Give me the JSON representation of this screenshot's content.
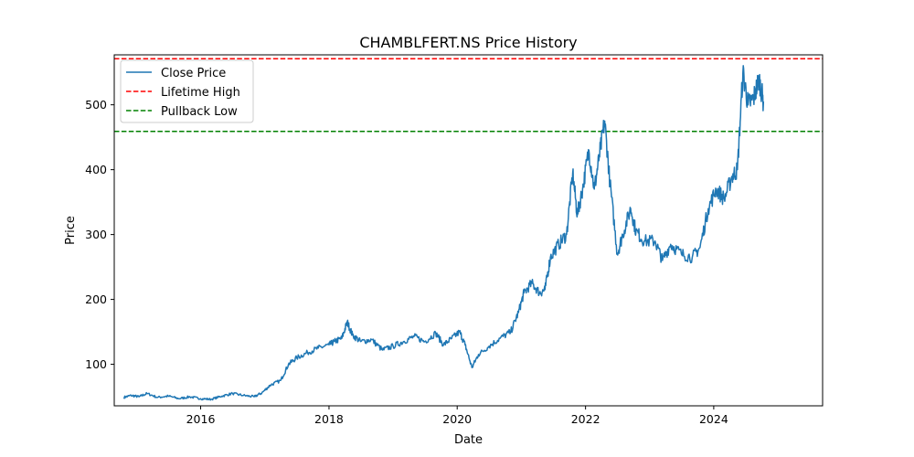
{
  "chart_data": {
    "type": "line",
    "title": "CHAMBLFERT.NS Price History",
    "xlabel": "Date",
    "ylabel": "Price",
    "xlim": [
      "2014-08-27",
      "2025-09-12"
    ],
    "ylim": [
      36,
      577
    ],
    "x_ticks": [
      {
        "label": "2016",
        "date": "2016-01-01"
      },
      {
        "label": "2018",
        "date": "2018-01-01"
      },
      {
        "label": "2020",
        "date": "2020-01-01"
      },
      {
        "label": "2022",
        "date": "2022-01-01"
      },
      {
        "label": "2024",
        "date": "2024-01-01"
      }
    ],
    "y_ticks": [
      100,
      200,
      300,
      400,
      500
    ],
    "grid": false,
    "legend_position": "top-left",
    "series": [
      {
        "name": "Close Price",
        "color": "#1f77b4",
        "style": "solid",
        "points": [
          [
            "2014-10-20",
            49
          ],
          [
            "2014-12-01",
            52
          ],
          [
            "2015-01-15",
            50
          ],
          [
            "2015-03-01",
            55
          ],
          [
            "2015-05-01",
            49
          ],
          [
            "2015-07-01",
            51
          ],
          [
            "2015-09-01",
            47
          ],
          [
            "2015-11-01",
            50
          ],
          [
            "2016-01-01",
            47
          ],
          [
            "2016-03-01",
            46
          ],
          [
            "2016-05-01",
            51
          ],
          [
            "2016-07-01",
            55
          ],
          [
            "2016-09-01",
            52
          ],
          [
            "2016-11-01",
            50
          ],
          [
            "2016-12-15",
            56
          ],
          [
            "2017-02-01",
            68
          ],
          [
            "2017-04-01",
            75
          ],
          [
            "2017-05-15",
            100
          ],
          [
            "2017-07-01",
            110
          ],
          [
            "2017-09-01",
            118
          ],
          [
            "2017-11-01",
            125
          ],
          [
            "2018-01-01",
            130
          ],
          [
            "2018-02-01",
            135
          ],
          [
            "2018-03-15",
            140
          ],
          [
            "2018-04-15",
            165
          ],
          [
            "2018-05-15",
            145
          ],
          [
            "2018-07-01",
            135
          ],
          [
            "2018-09-01",
            138
          ],
          [
            "2018-11-01",
            122
          ],
          [
            "2019-01-01",
            128
          ],
          [
            "2019-03-01",
            135
          ],
          [
            "2019-05-01",
            143
          ],
          [
            "2019-07-01",
            135
          ],
          [
            "2019-09-01",
            148
          ],
          [
            "2019-10-15",
            130
          ],
          [
            "2019-12-01",
            140
          ],
          [
            "2020-01-15",
            150
          ],
          [
            "2020-02-15",
            130
          ],
          [
            "2020-03-25",
            95
          ],
          [
            "2020-05-01",
            115
          ],
          [
            "2020-07-01",
            128
          ],
          [
            "2020-09-01",
            140
          ],
          [
            "2020-11-01",
            150
          ],
          [
            "2020-12-15",
            180
          ],
          [
            "2021-01-15",
            210
          ],
          [
            "2021-03-01",
            225
          ],
          [
            "2021-04-15",
            210
          ],
          [
            "2021-05-15",
            215
          ],
          [
            "2021-06-15",
            265
          ],
          [
            "2021-08-01",
            285
          ],
          [
            "2021-09-15",
            300
          ],
          [
            "2021-10-20",
            395
          ],
          [
            "2021-11-15",
            330
          ],
          [
            "2021-12-15",
            370
          ],
          [
            "2022-01-20",
            430
          ],
          [
            "2022-02-20",
            370
          ],
          [
            "2022-03-20",
            420
          ],
          [
            "2022-04-20",
            475
          ],
          [
            "2022-05-20",
            380
          ],
          [
            "2022-07-01",
            270
          ],
          [
            "2022-08-01",
            300
          ],
          [
            "2022-09-15",
            340
          ],
          [
            "2022-10-15",
            305
          ],
          [
            "2022-12-01",
            290
          ],
          [
            "2023-02-01",
            290
          ],
          [
            "2023-03-15",
            260
          ],
          [
            "2023-05-01",
            285
          ],
          [
            "2023-07-01",
            270
          ],
          [
            "2023-09-01",
            265
          ],
          [
            "2023-10-15",
            280
          ],
          [
            "2023-12-01",
            340
          ],
          [
            "2024-01-15",
            370
          ],
          [
            "2024-03-01",
            355
          ],
          [
            "2024-04-15",
            390
          ],
          [
            "2024-05-15",
            400
          ],
          [
            "2024-06-15",
            550
          ],
          [
            "2024-07-15",
            500
          ],
          [
            "2024-08-15",
            510
          ],
          [
            "2024-09-15",
            540
          ],
          [
            "2024-10-10",
            505
          ]
        ]
      },
      {
        "name": "Lifetime High",
        "color": "#ff0000",
        "style": "dashed",
        "value": 571
      },
      {
        "name": "Pullback Low",
        "color": "#008000",
        "style": "dashed",
        "value": 459
      }
    ]
  }
}
